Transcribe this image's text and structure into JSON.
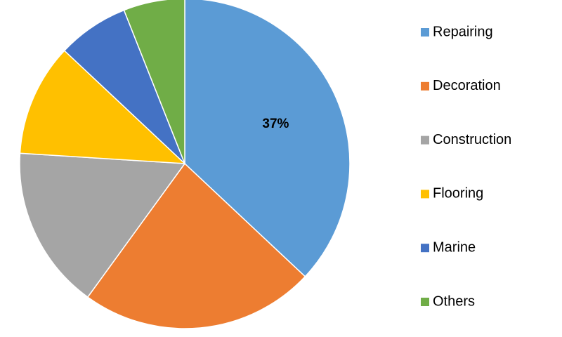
{
  "chart_data": {
    "type": "pie",
    "categories": [
      "Repairing",
      "Decoration",
      "Construction",
      "Flooring",
      "Marine",
      "Others"
    ],
    "values": [
      37,
      23,
      16,
      11,
      7,
      6
    ],
    "value_labels": [
      "37%",
      null,
      null,
      null,
      null,
      null
    ],
    "colors": [
      "#5b9bd5",
      "#ed7d31",
      "#a5a5a5",
      "#ffc000",
      "#4472c4",
      "#70ad47"
    ],
    "legend": "right"
  }
}
